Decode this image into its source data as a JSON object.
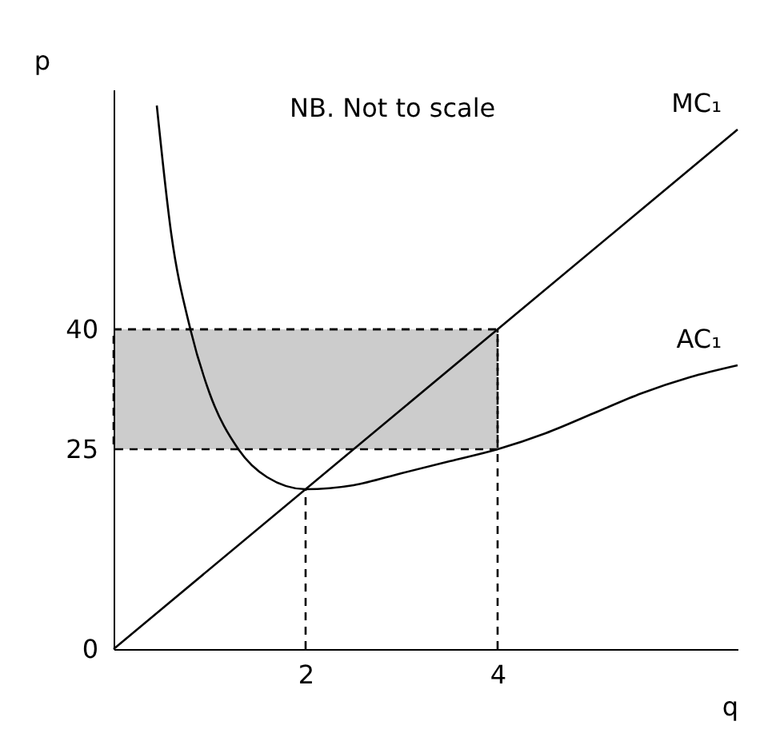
{
  "chart_data": {
    "type": "line",
    "xlabel": "q",
    "ylabel": "p",
    "annotations": [
      "NB.  Not to scale"
    ],
    "xlim": [
      0,
      6.5
    ],
    "ylim": [
      0,
      70
    ],
    "xticks": [
      2,
      4
    ],
    "yticks": [
      0,
      25,
      40
    ],
    "grid": false,
    "marker": "none",
    "series": [
      {
        "name": "MC₁",
        "color": "#000000",
        "x": [
          0,
          6.5
        ],
        "values": [
          0,
          65
        ]
      },
      {
        "name": "AC₁",
        "color": "#000000",
        "x": [
          0.45,
          0.6,
          0.8,
          1,
          1.3,
          1.6,
          2,
          2.5,
          3,
          3.5,
          4,
          4.5,
          5,
          5.5,
          6,
          6.5
        ],
        "values": [
          68,
          52,
          40,
          32,
          25,
          21.5,
          20,
          20.5,
          22,
          23.5,
          25,
          27,
          29.5,
          32,
          34,
          35.5
        ]
      },
      {
        "color": "#000000",
        "line_style": "dashed",
        "x": [
          0,
          4
        ],
        "values": [
          40,
          40
        ],
        "lower": [
          25,
          25
        ],
        "upper": [
          40,
          40
        ]
      },
      {
        "color": "#000000",
        "line_style": "dashed",
        "x": [
          2,
          2
        ],
        "values": [
          0,
          20
        ]
      },
      {
        "color": "#000000",
        "line_style": "dashed",
        "x": [
          4,
          4
        ],
        "values": [
          0,
          40
        ]
      }
    ]
  }
}
